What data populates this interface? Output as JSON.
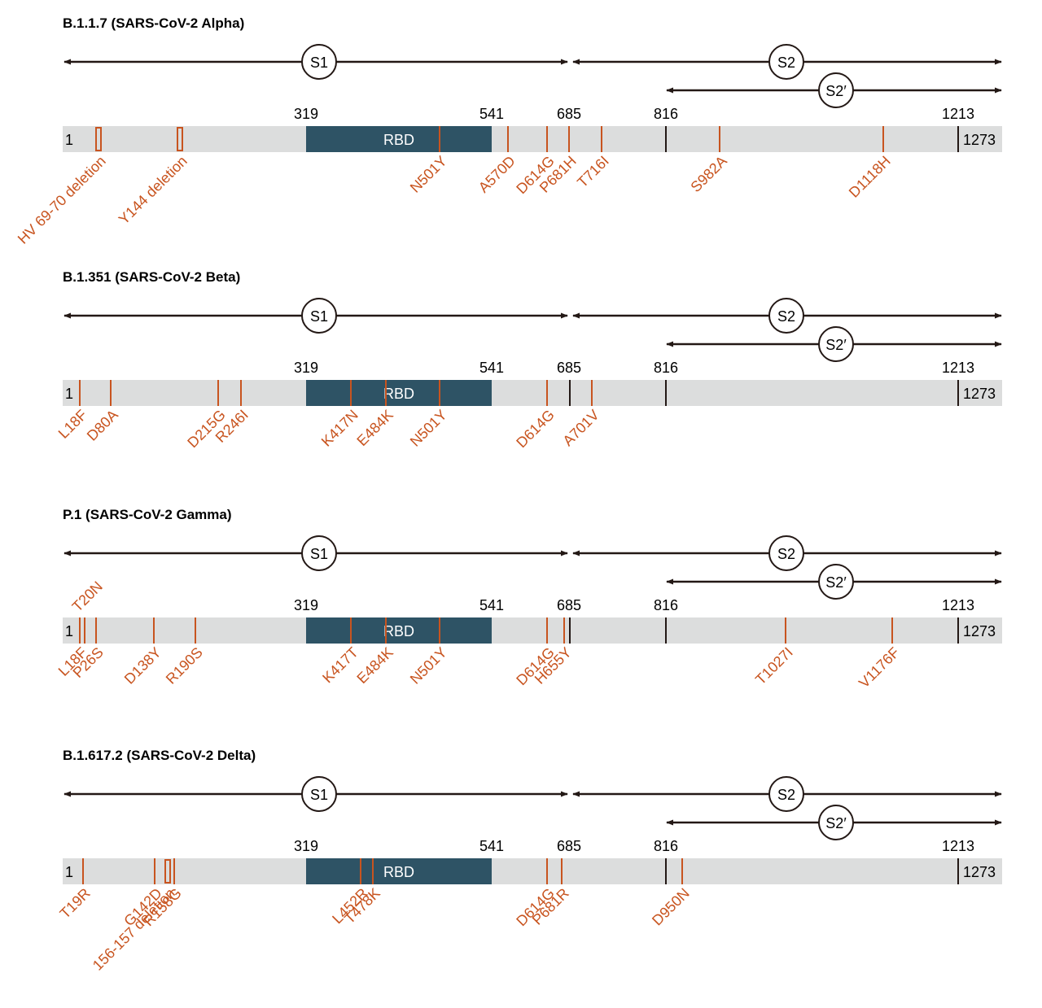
{
  "panels": [
    {
      "title": "B.1.1.7 (SARS-CoV-2 Alpha)",
      "s1": "S1",
      "s2": "S2",
      "s2_prime": "S2′",
      "positions": [
        319,
        541,
        685,
        816,
        1213
      ],
      "start": 1,
      "end": 1273,
      "domain": "RBD",
      "mutations": [
        "HV 69-70 deletion",
        "Y144 deletion",
        "N501Y",
        "A570D",
        "D614G",
        "P681H",
        "T716I",
        "S982A",
        "D1118H"
      ]
    },
    {
      "title": "B.1.351 (SARS-CoV-2 Beta)",
      "s1": "S1",
      "s2": "S2",
      "s2_prime": "S2′",
      "positions": [
        319,
        541,
        685,
        816,
        1213
      ],
      "start": 1,
      "end": 1273,
      "domain": "RBD",
      "mutations": [
        "L18F",
        "D80A",
        "D215G",
        "R246I",
        "K417N",
        "E484K",
        "N501Y",
        "D614G",
        "A701V"
      ]
    },
    {
      "title": "P.1 (SARS-CoV-2 Gamma)",
      "s1": "S1",
      "s2": "S2",
      "s2_prime": "S2′",
      "positions": [
        319,
        541,
        685,
        816,
        1213
      ],
      "start": 1,
      "end": 1273,
      "domain": "RBD",
      "mutations": [
        "L18F",
        "T20N",
        "P26S",
        "D138Y",
        "R190S",
        "K417T",
        "E484K",
        "N501Y",
        "D614G",
        "H655Y",
        "T1027I",
        "V1176F"
      ]
    },
    {
      "title": "B.1.617.2 (SARS-CoV-2 Delta)",
      "s1": "S1",
      "s2": "S2",
      "s2_prime": "S2′",
      "positions": [
        319,
        541,
        685,
        816,
        1213
      ],
      "start": 1,
      "end": 1273,
      "domain": "RBD",
      "mutations": [
        "T19R",
        "G142D",
        "156-157 deletion",
        "R158G",
        "L452R",
        "T478K",
        "D614G",
        "P681R",
        "D950N"
      ]
    }
  ]
}
